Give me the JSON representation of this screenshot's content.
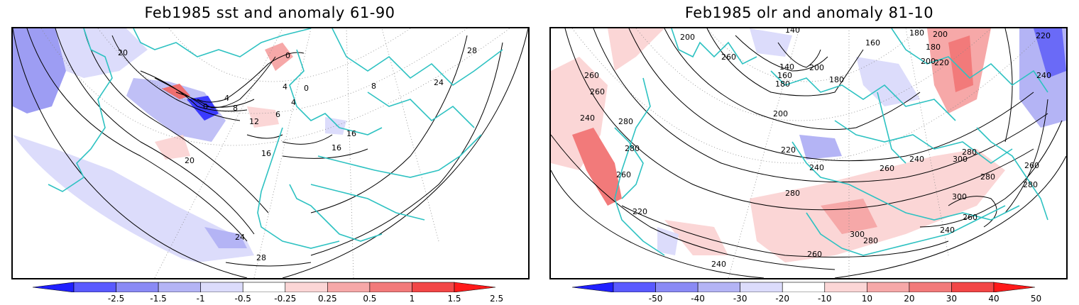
{
  "panels": [
    {
      "title": "Feb1985 sst and anomaly 61-90",
      "colorbar": {
        "labels": [
          "-2.5",
          "-1.5",
          "-1",
          "-0.5",
          "-0.25",
          "0.25",
          "0.5",
          "1",
          "1.5",
          "2.5"
        ],
        "colors": [
          "#2020ff",
          "#5a5aff",
          "#8a8af5",
          "#b4b4f5",
          "#dcdcfb",
          "#ffffff",
          "#fbd6d6",
          "#f6a8a8",
          "#f27a7a",
          "#f24646",
          "#ff1a1a"
        ]
      },
      "contour_labels": [
        "20",
        "0",
        "4",
        "0",
        "4",
        "0",
        "8",
        "4",
        "8",
        "12",
        "6",
        "16",
        "16",
        "16",
        "20",
        "24",
        "28",
        "24",
        "28"
      ]
    },
    {
      "title": "Feb1985 olr and anomaly 81-10",
      "colorbar": {
        "labels": [
          "-50",
          "-40",
          "-30",
          "-20",
          "-10",
          "10",
          "20",
          "30",
          "40",
          "50"
        ],
        "colors": [
          "#2020ff",
          "#5a5aff",
          "#8a8af5",
          "#b4b4f5",
          "#dcdcfb",
          "#ffffff",
          "#fbd6d6",
          "#f6a8a8",
          "#f27a7a",
          "#f24646",
          "#ff1a1a"
        ]
      },
      "contour_labels": [
        "200",
        "140",
        "180",
        "200",
        "220",
        "260",
        "160",
        "140",
        "160",
        "180",
        "180",
        "200",
        "180",
        "200",
        "240",
        "260",
        "240",
        "260",
        "280",
        "200",
        "220",
        "280",
        "220",
        "240",
        "260",
        "300",
        "280",
        "300",
        "280",
        "260",
        "280",
        "240",
        "260",
        "280",
        "300",
        "220",
        "240",
        "280",
        "260",
        "240",
        "260"
      ]
    }
  ],
  "colors": {
    "coastline": "#2ec2c2",
    "contour": "#000000",
    "frame": "#000000"
  }
}
